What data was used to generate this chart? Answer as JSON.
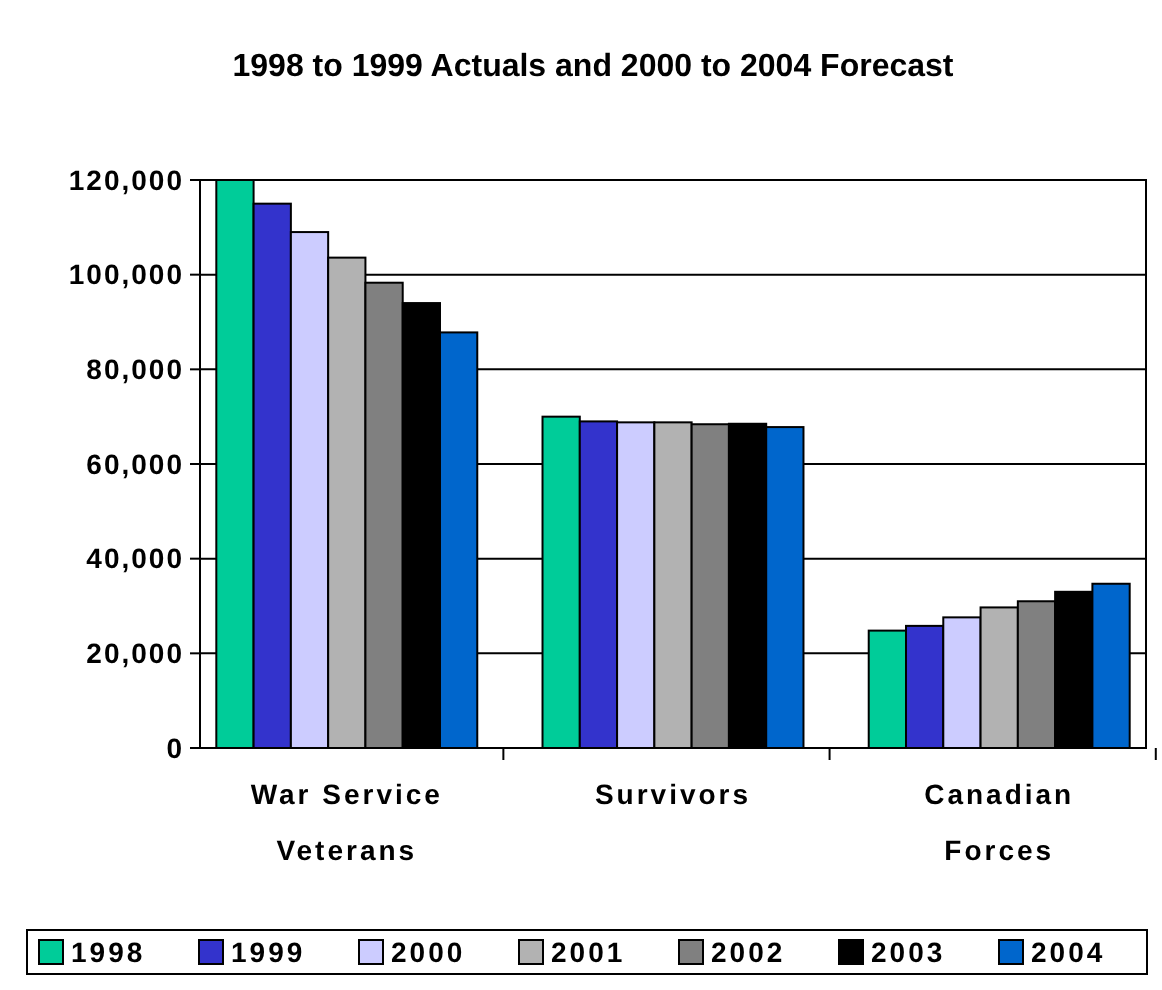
{
  "chart_data": {
    "type": "bar",
    "title": "1998 to 1999 Actuals and 2000 to 2004 Forecast",
    "categories": [
      "War Service Veterans",
      "Survivors",
      "Canadian Forces"
    ],
    "series": [
      {
        "name": "1998",
        "color": "#00cc99",
        "values": [
          120000,
          70000,
          24800
        ]
      },
      {
        "name": "1999",
        "color": "#3333cc",
        "values": [
          115000,
          69000,
          25800
        ]
      },
      {
        "name": "2000",
        "color": "#ccccff",
        "values": [
          109000,
          68800,
          27600
        ]
      },
      {
        "name": "2001",
        "color": "#b2b2b2",
        "values": [
          103600,
          68800,
          29700
        ]
      },
      {
        "name": "2002",
        "color": "#808080",
        "values": [
          98300,
          68400,
          31000
        ]
      },
      {
        "name": "2003",
        "color": "#000000",
        "values": [
          94000,
          68500,
          33000
        ]
      },
      {
        "name": "2004",
        "color": "#0066cc",
        "values": [
          87800,
          67800,
          34700
        ]
      }
    ],
    "ylim": [
      0,
      120000
    ],
    "yticks": [
      {
        "value": 0,
        "label": "0"
      },
      {
        "value": 20000,
        "label": "20,000"
      },
      {
        "value": 40000,
        "label": "40,000"
      },
      {
        "value": 60000,
        "label": "60,000"
      },
      {
        "value": 80000,
        "label": "80,000"
      },
      {
        "value": 100000,
        "label": "100,000"
      },
      {
        "value": 120000,
        "label": "120,000"
      }
    ],
    "grid": "y",
    "legend": "bottom"
  }
}
